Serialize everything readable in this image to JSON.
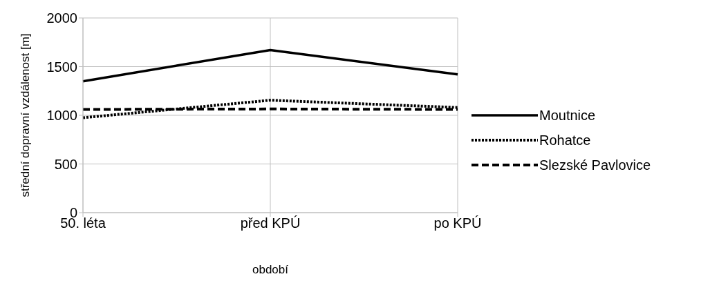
{
  "chart_data": {
    "type": "line",
    "xlabel": "období",
    "ylabel": "střední dopravní vzdálenost [m]",
    "categories": [
      "50. léta",
      "před KPÚ",
      "po KPÚ"
    ],
    "series": [
      {
        "name": "Moutnice",
        "color": "#000000",
        "values": [
          1350,
          1670,
          1420
        ],
        "line_style": "solid"
      },
      {
        "name": "Rohatce",
        "color": "#000000",
        "values": [
          975,
          1155,
          1080
        ],
        "line_style": "dotted"
      },
      {
        "name": "Slezské Pavlovice",
        "color": "#000000",
        "values": [
          1060,
          1065,
          1060
        ],
        "line_style": "dashed"
      }
    ],
    "ylim": [
      0,
      2000
    ],
    "yticks": [
      0,
      500,
      1000,
      1500,
      2000
    ],
    "grid": true,
    "legend": "right",
    "marker": "none"
  }
}
